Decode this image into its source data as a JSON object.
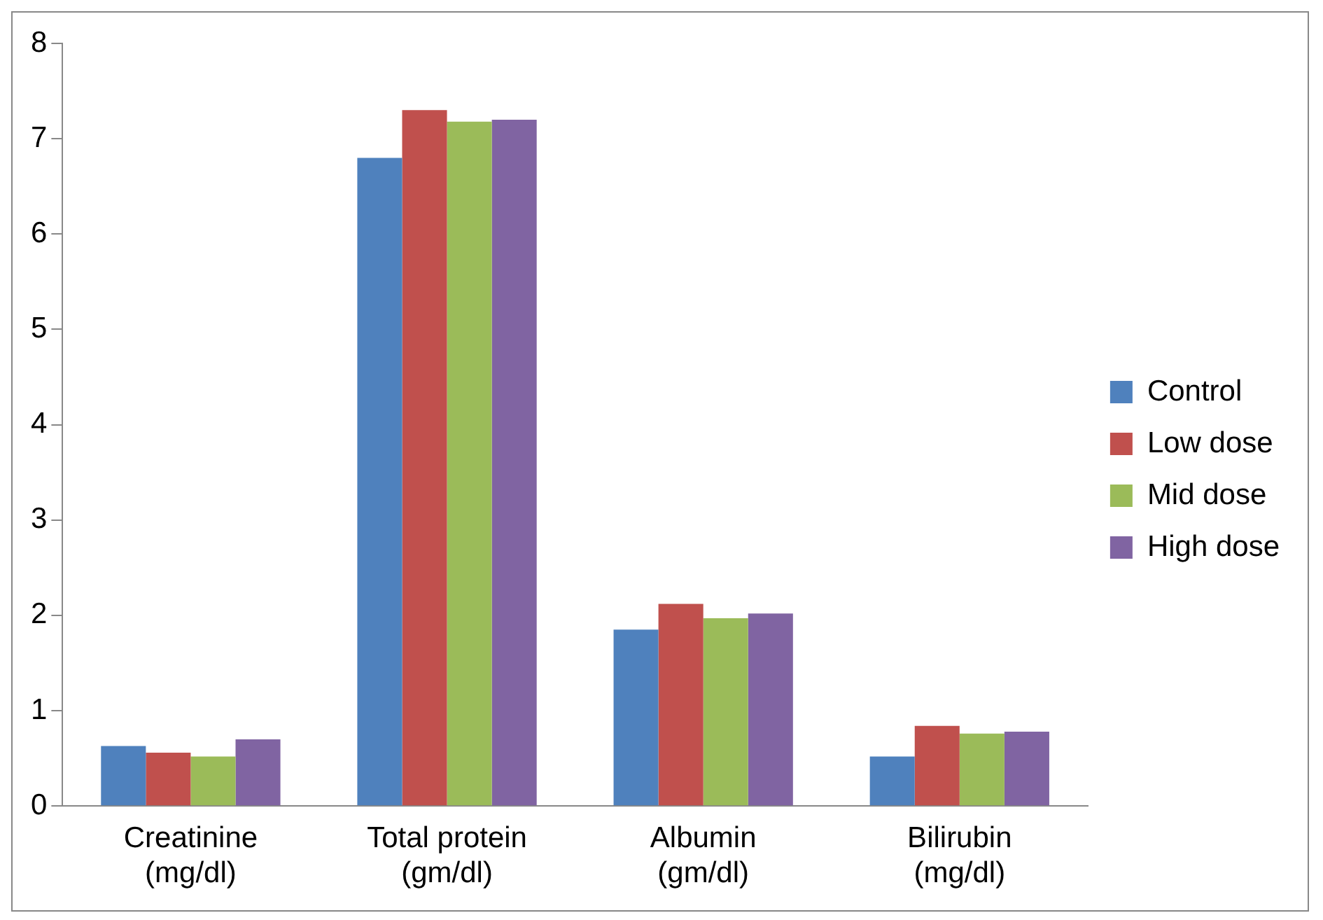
{
  "chart_data": {
    "type": "bar",
    "categories": [
      "Creatinine (mg/dl)",
      "Total protein (gm/dl)",
      "Albumin (gm/dl)",
      "Bilirubin (mg/dl)"
    ],
    "series": [
      {
        "name": "Control",
        "color": "#4f81bd",
        "values": [
          0.63,
          6.8,
          1.85,
          0.52
        ]
      },
      {
        "name": "Low dose",
        "color": "#c0504d",
        "values": [
          0.56,
          7.3,
          2.12,
          0.84
        ]
      },
      {
        "name": "Mid dose",
        "color": "#9bbb59",
        "values": [
          0.52,
          7.18,
          1.97,
          0.76
        ]
      },
      {
        "name": "High dose",
        "color": "#8064a2",
        "values": [
          0.7,
          7.2,
          2.02,
          0.78
        ]
      }
    ],
    "ylim": [
      0,
      8
    ],
    "yticks": [
      0,
      1,
      2,
      3,
      4,
      5,
      6,
      7,
      8
    ],
    "grid": false,
    "legend": "right"
  }
}
